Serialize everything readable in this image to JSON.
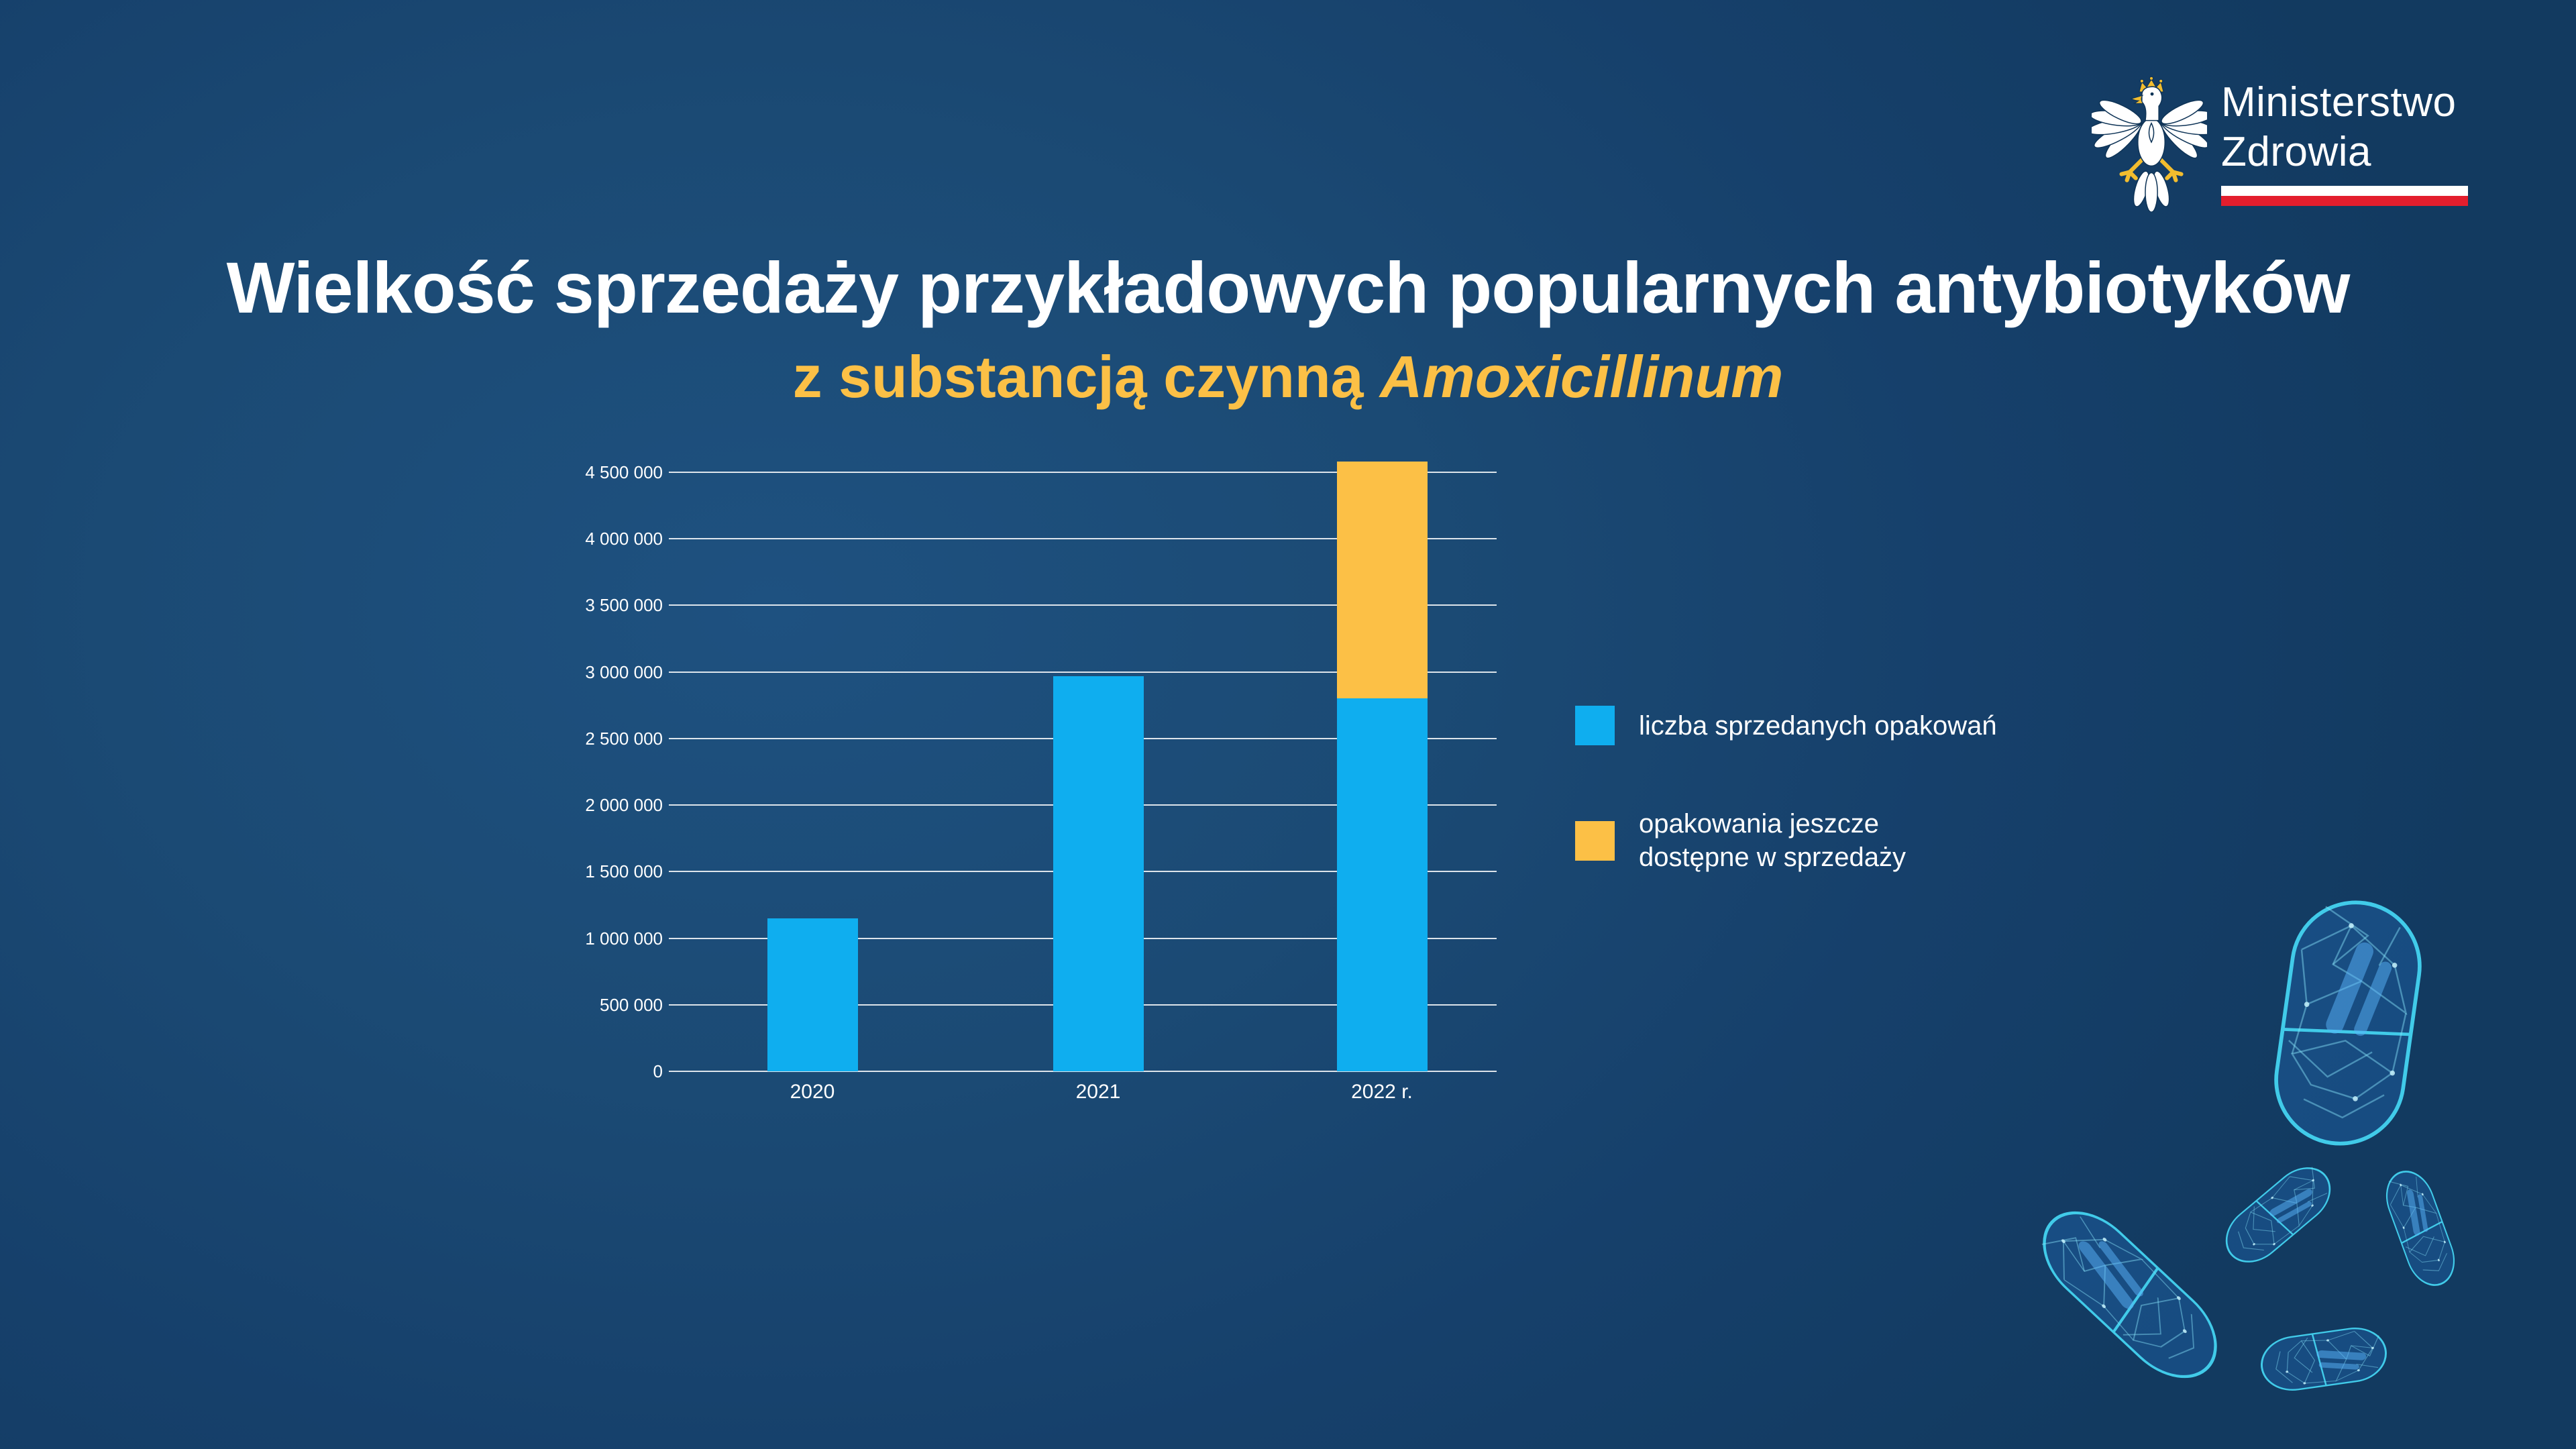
{
  "background": {
    "center": "#1e5180",
    "mid": "#1a4872",
    "edge": "#123a60"
  },
  "logo": {
    "ministry_line1": "Ministerstwo",
    "ministry_line2": "Zdrowia",
    "eagle_icon": "polish-eagle-emblem",
    "flag_white": "#ffffff",
    "flag_red": "#e31e2d"
  },
  "title": {
    "line1": "Wielkość sprzedaży przykładowych popularnych antybiotyków",
    "line2_prefix": "z substancją czynną ",
    "line2_emphasis": "Amoxicillinum",
    "line1_color": "#ffffff",
    "line2_color": "#fcc046"
  },
  "chart_data": {
    "type": "bar",
    "stacked": true,
    "title": "Wielkość sprzedaży przykładowych popularnych antybiotyków z substancją czynną Amoxicillinum",
    "categories": [
      "2020",
      "2021",
      "2022 r."
    ],
    "series": [
      {
        "name": "liczba sprzedanych opakowań",
        "color": "#0faeef",
        "values": [
          1150000,
          2970000,
          2800000
        ]
      },
      {
        "name": "opakowania jeszcze dostępne w sprzedaży",
        "color": "#fcc046",
        "values": [
          0,
          0,
          1780000
        ]
      }
    ],
    "ylim": [
      0,
      4500000
    ],
    "yticks": [
      {
        "value": 0,
        "label": "0"
      },
      {
        "value": 500000,
        "label": "500 000"
      },
      {
        "value": 1000000,
        "label": "1 000 000"
      },
      {
        "value": 1500000,
        "label": "1 500 000"
      },
      {
        "value": 2000000,
        "label": "2 000 000"
      },
      {
        "value": 2500000,
        "label": "2 500 000"
      },
      {
        "value": 3000000,
        "label": "3 000 000"
      },
      {
        "value": 3500000,
        "label": "3 500 000"
      },
      {
        "value": 4000000,
        "label": "4 000 000"
      },
      {
        "value": 4500000,
        "label": "4 500 000"
      }
    ],
    "grid": true,
    "gridline_color": "rgba(255,255,255,0.85)",
    "tick_color": "#ffffff",
    "legend_position": "right"
  },
  "legend": {
    "items": [
      {
        "color": "#0faeef",
        "lines": [
          "liczba sprzedanych opakowań"
        ]
      },
      {
        "color": "#fcc046",
        "lines": [
          "opakowania jeszcze",
          "dostępne w sprzedaży"
        ]
      }
    ]
  },
  "decor": {
    "icon": "wireframe-capsule-pills",
    "count": 5,
    "color": "#41cbe9"
  }
}
